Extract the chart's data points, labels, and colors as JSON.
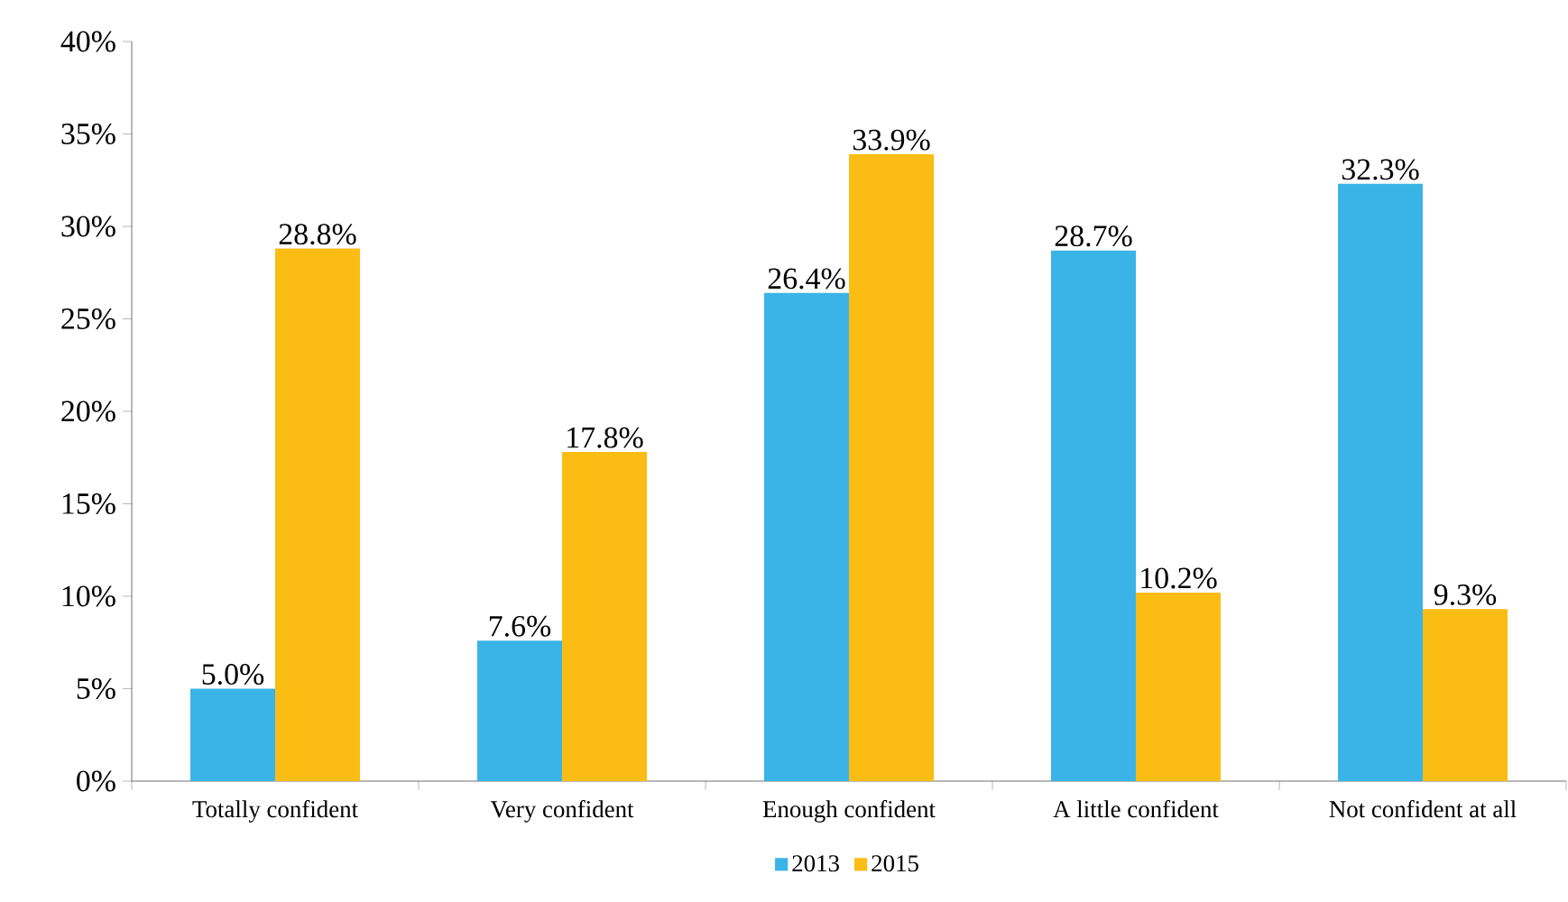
{
  "chart_data": {
    "type": "bar",
    "categories": [
      "Totally confident",
      "Very confident",
      "Enough confident",
      "A little confident",
      "Not confident at all"
    ],
    "series": [
      {
        "name": "2013",
        "color": "#3ab4e6",
        "values": [
          5.0,
          7.6,
          26.4,
          28.7,
          32.3
        ],
        "value_labels": [
          "5.0%",
          "7.6%",
          "26.4%",
          "28.7%",
          "32.3%"
        ]
      },
      {
        "name": "2015",
        "color": "#fbbc14",
        "values": [
          28.8,
          17.8,
          33.9,
          10.2,
          9.3
        ],
        "value_labels": [
          "28.8%",
          "17.8%",
          "33.9%",
          "10.2%",
          "9.3%"
        ]
      }
    ],
    "ylim": [
      0,
      40
    ],
    "yticks": [
      {
        "value": 0,
        "label": "0%"
      },
      {
        "value": 5,
        "label": "5%"
      },
      {
        "value": 10,
        "label": "10%"
      },
      {
        "value": 15,
        "label": "15%"
      },
      {
        "value": 20,
        "label": "20%"
      },
      {
        "value": 25,
        "label": "25%"
      },
      {
        "value": 30,
        "label": "30%"
      },
      {
        "value": 35,
        "label": "35%"
      },
      {
        "value": 40,
        "label": "40%"
      }
    ],
    "grid": false,
    "legend": "bottom"
  }
}
